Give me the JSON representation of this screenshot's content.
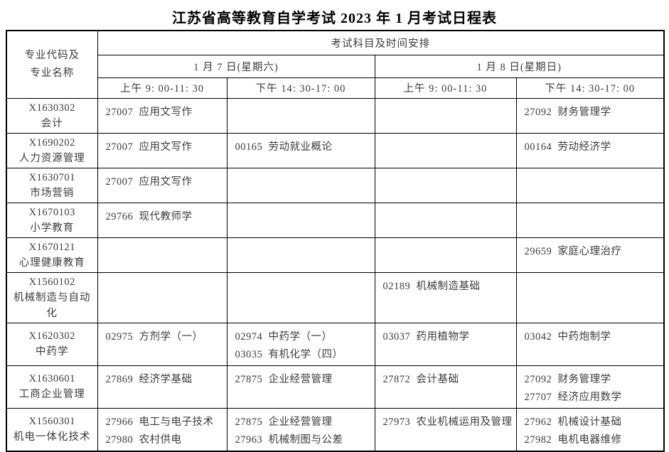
{
  "page_title": "江苏省高等教育自学考试 2023 年 1 月考试日程表",
  "table": {
    "corner_header": "专业代码及\n专业名称",
    "subjects_header": "考试科目及时间安排",
    "day_headers": [
      "1 月 7 日(星期六)",
      "1 月 8 日(星期日)"
    ],
    "time_headers": [
      "上午 9: 00-11: 30",
      "下午 14: 30-17: 00",
      "上午 9: 00-11: 30",
      "下午 14: 30-17: 00"
    ],
    "rows": [
      {
        "code": "X1630302",
        "major": "会计",
        "cells": [
          [
            "27007  应用文写作"
          ],
          [],
          [],
          [
            "27092  财务管理学"
          ]
        ]
      },
      {
        "code": "X1690202",
        "major": "人力资源管理",
        "cells": [
          [
            "27007  应用文写作"
          ],
          [
            "00165  劳动就业概论"
          ],
          [],
          [
            "00164  劳动经济学"
          ]
        ]
      },
      {
        "code": "X1630701",
        "major": "市场营销",
        "cells": [
          [
            "27007  应用文写作"
          ],
          [],
          [],
          []
        ]
      },
      {
        "code": "X1670103",
        "major": "小学教育",
        "cells": [
          [
            "29766  现代教师学"
          ],
          [],
          [],
          []
        ]
      },
      {
        "code": "X1670121",
        "major": "心理健康教育",
        "cells": [
          [],
          [],
          [],
          [
            "29659  家庭心理治疗"
          ]
        ]
      },
      {
        "code": "X1560102",
        "major": "机械制造与自动化",
        "cells": [
          [],
          [],
          [
            "02189  机械制造基础"
          ],
          []
        ]
      },
      {
        "code": "X1620302",
        "major": "中药学",
        "cells": [
          [
            "02975  方剂学（一）"
          ],
          [
            "02974  中药学（一）",
            "03035  有机化学（四）"
          ],
          [
            "03037  药用植物学"
          ],
          [
            "03042  中药炮制学"
          ]
        ]
      },
      {
        "code": "X1630601",
        "major": "工商企业管理",
        "cells": [
          [
            "27869  经济学基础"
          ],
          [
            "27875  企业经营管理"
          ],
          [
            "27872  会计基础"
          ],
          [
            "27092  财务管理学",
            "27707  经济应用数学"
          ]
        ]
      },
      {
        "code": "X1560301",
        "major": "机电一体化技术",
        "cells": [
          [
            "27966  电工与电子技术",
            "27980  农村供电"
          ],
          [
            "27875  企业经营管理",
            "27963  机械制图与公差"
          ],
          [
            "27973  农业机械运用及管理"
          ],
          [
            "27962  机械设计基础",
            "27982  电机电器维修"
          ]
        ]
      }
    ]
  },
  "colors": {
    "background": "#ffffff",
    "text": "#3c3c3c",
    "title_text": "#000000",
    "border": "#000000"
  }
}
